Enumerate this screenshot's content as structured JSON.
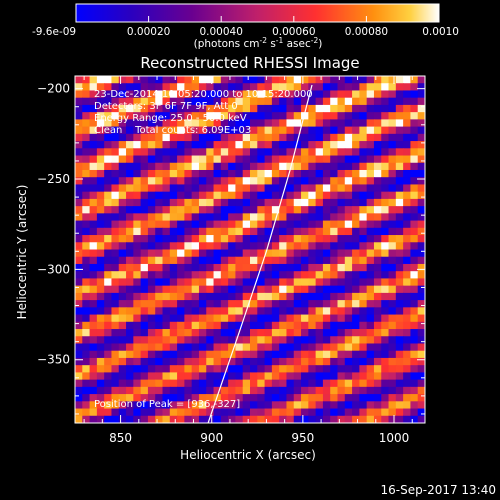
{
  "chart_data": {
    "type": "heatmap",
    "title": "Reconstructed RHESSI Image",
    "xlabel": "Heliocentric X (arcsec)",
    "ylabel": "Heliocentric Y (arcsec)",
    "xlim": [
      825,
      1017
    ],
    "ylim": [
      -385,
      -193
    ],
    "x_ticks": [
      850,
      900,
      950,
      1000
    ],
    "y_ticks": [
      -200,
      -250,
      -300,
      -350
    ],
    "colorbar": {
      "ticks": [
        "-9.6e-09",
        "0.00020",
        "0.00040",
        "0.00060",
        "0.00080",
        "0.0010"
      ],
      "tick_values": [
        0,
        0.0002,
        0.0004,
        0.0006,
        0.0008,
        0.001
      ],
      "range": [
        -9.6e-09,
        0.001
      ],
      "unit_prefix": "(photons cm",
      "unit_exp1": "-2",
      "unit_mid": " s",
      "unit_exp2": "-1",
      "unit_mid2": " asec",
      "unit_exp3": "-2",
      "unit_suffix": ")",
      "colormap": "rainbow-hot"
    },
    "annotations": [
      "23-Dec-2014 10:05:20.000 to 10:15:20.000",
      "Detectors: 3F 6F 7F 9F, Att 0",
      "Energy Range: 25.0 - 50.0 keV",
      "Clean    Total counts: 6.09E+03"
    ],
    "peak_label": "Position of Peak = [936,-327]",
    "peak": [
      936,
      -327
    ],
    "limb_curve": [
      [
        898,
        -385
      ],
      [
        915,
        -335
      ],
      [
        930,
        -290
      ],
      [
        943,
        -245
      ],
      [
        955,
        -198
      ]
    ],
    "pattern": "diagonal stripe modulation across field of view",
    "grid": false
  },
  "footer": {
    "timestamp": "16-Sep-2017 13:40"
  },
  "colors": {
    "background": "#000000",
    "text": "#ffffff",
    "limb": "#ffffff"
  }
}
